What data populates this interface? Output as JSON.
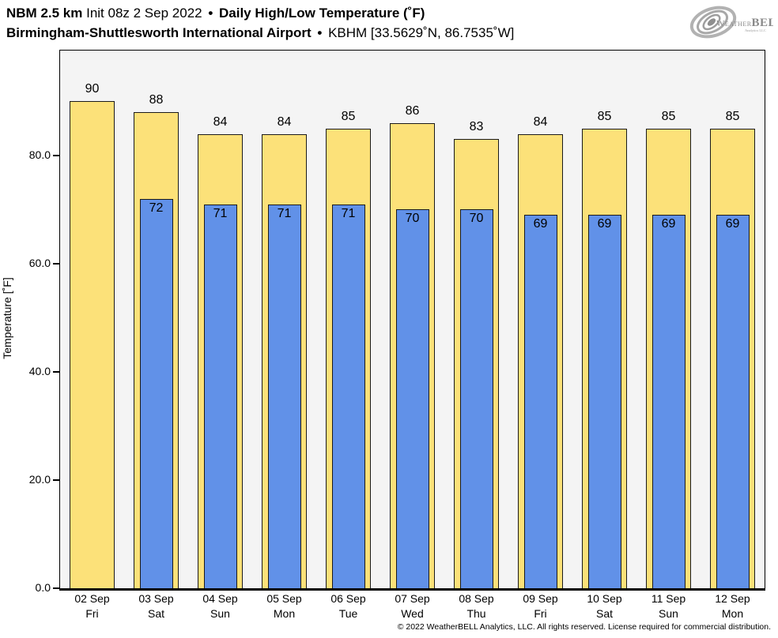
{
  "header": {
    "title_model": "NBM 2.5 km",
    "title_init": " Init 08z 2 Sep 2022 ",
    "title_sep": "•",
    "title_product": " Daily High/Low Temperature (˚F)",
    "station_name": "Birmingham-Shuttlesworth International Airport",
    "station_sep": "•",
    "station_meta": " KBHM [33.5629˚N, 86.7535˚W]"
  },
  "logo": {
    "weather": "Weather",
    "bell": "BELL",
    "sub": "Analytics LLC"
  },
  "footer": {
    "copyright": "© 2022 WeatherBELL Analytics, LLC. All rights reserved. License required for commercial distribution."
  },
  "chart_data": {
    "type": "bar",
    "title": "Daily High/Low Temperature (°F)",
    "xlabel": "",
    "ylabel": "Temperature [˚F]",
    "ylim": [
      0,
      99.4
    ],
    "grid": false,
    "legend": "none",
    "plot_bg": "#f4f4f4",
    "bar_outline": "#1a1a1a",
    "yticks": [
      {
        "value": 0,
        "label": "0.0"
      },
      {
        "value": 20,
        "label": "20.0"
      },
      {
        "value": 40,
        "label": "40.0"
      },
      {
        "value": 60,
        "label": "60.0"
      },
      {
        "value": 80,
        "label": "80.0"
      }
    ],
    "categories": [
      {
        "date": "02 Sep",
        "day": "Fri"
      },
      {
        "date": "03 Sep",
        "day": "Sat"
      },
      {
        "date": "04 Sep",
        "day": "Sun"
      },
      {
        "date": "05 Sep",
        "day": "Mon"
      },
      {
        "date": "06 Sep",
        "day": "Tue"
      },
      {
        "date": "07 Sep",
        "day": "Wed"
      },
      {
        "date": "08 Sep",
        "day": "Thu"
      },
      {
        "date": "09 Sep",
        "day": "Fri"
      },
      {
        "date": "10 Sep",
        "day": "Sat"
      },
      {
        "date": "11 Sep",
        "day": "Sun"
      },
      {
        "date": "12 Sep",
        "day": "Mon"
      }
    ],
    "series": [
      {
        "name": "High",
        "color": "#FCE179",
        "values": [
          90,
          88,
          84,
          84,
          85,
          86,
          83,
          84,
          85,
          85,
          85
        ]
      },
      {
        "name": "Low",
        "color": "#6191E8",
        "values": [
          null,
          72,
          71,
          71,
          71,
          70,
          70,
          69,
          69,
          69,
          69
        ]
      }
    ]
  }
}
